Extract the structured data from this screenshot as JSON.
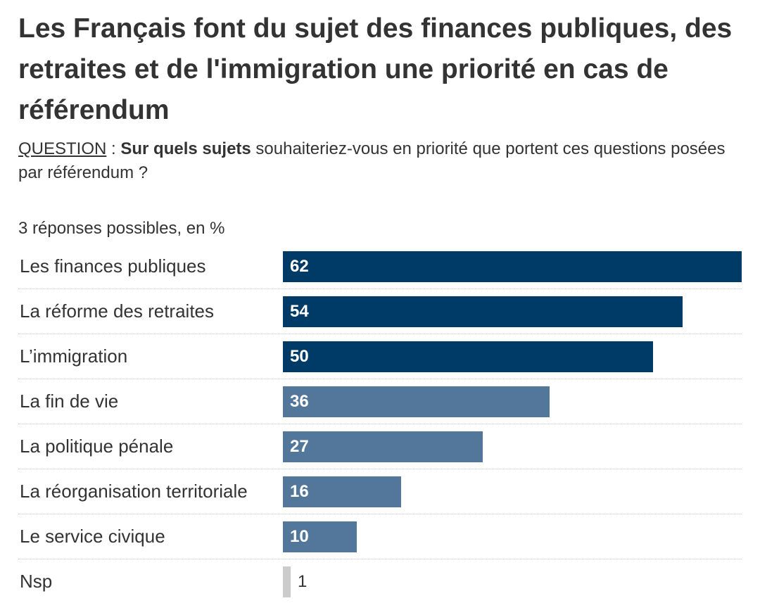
{
  "title": "Les Français font du sujet des finances publiques, des retraites et de l'immigration une priorité en cas de référendum",
  "question": {
    "label": "QUESTION",
    "separator": " : ",
    "bold_part": "Sur quels sujets",
    "rest": " souhaiteriez-vous en priorité que portent ces questions posées par référendum ?"
  },
  "subtitle": "3 réponses possibles, en %",
  "colors": {
    "dark": "#003a66",
    "medium": "#53779b",
    "light": "#cccccc",
    "value_on_bar": "#ffffff",
    "value_outside": "#333333"
  },
  "chart_data": {
    "type": "bar",
    "orientation": "horizontal",
    "categories": [
      "Les finances publiques",
      "La réforme des retraites",
      "L’immigration",
      "La fin de vie",
      "La politique pénale",
      "La réorganisation territoriale",
      "Le service civique",
      "Nsp"
    ],
    "values": [
      62,
      54,
      50,
      36,
      27,
      16,
      10,
      1
    ],
    "bar_colors": [
      "dark",
      "dark",
      "dark",
      "medium",
      "medium",
      "medium",
      "medium",
      "light"
    ],
    "title": "Les Français font du sujet des finances publiques, des retraites et de l'immigration une priorité en cas de référendum",
    "xlabel": "",
    "ylabel": "",
    "xlim": [
      0,
      62
    ],
    "grid": false,
    "data_labels": true
  }
}
